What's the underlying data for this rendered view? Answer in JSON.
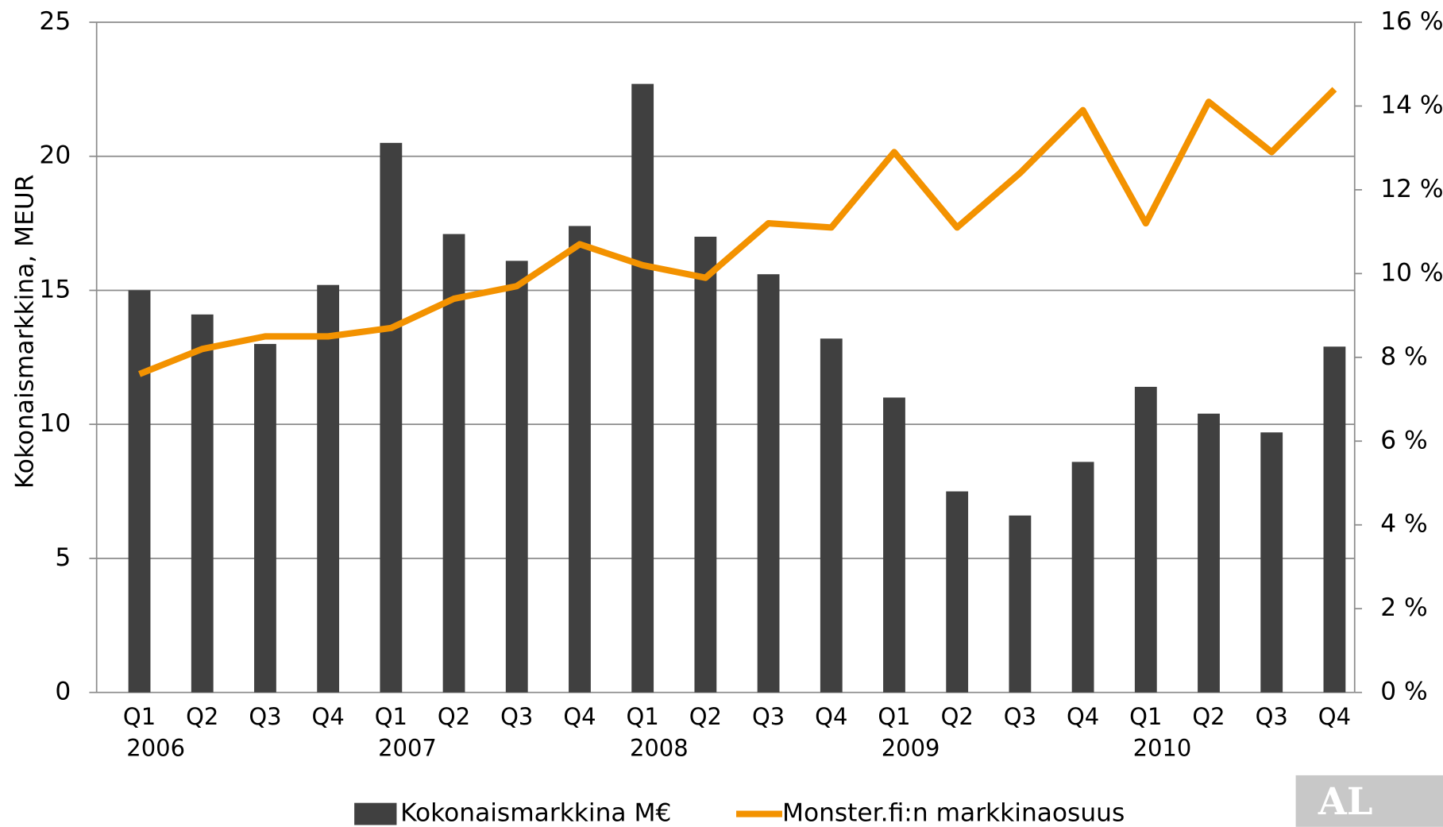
{
  "chart_data": {
    "type": "bar-line",
    "ylabel": "Kokonaismarkkina, MEUR",
    "categories": [
      "Q1",
      "Q2",
      "Q3",
      "Q4",
      "Q1",
      "Q2",
      "Q3",
      "Q4",
      "Q1",
      "Q2",
      "Q3",
      "Q4",
      "Q1",
      "Q2",
      "Q3",
      "Q4",
      "Q1",
      "Q2",
      "Q3",
      "Q4"
    ],
    "year_labels": [
      "2006",
      null,
      null,
      null,
      "2007",
      null,
      null,
      null,
      "2008",
      null,
      null,
      null,
      "2009",
      null,
      null,
      null,
      "2010",
      null,
      null,
      null
    ],
    "series": [
      {
        "name": "Kokonaismarkkina M€",
        "color": "#404040",
        "type": "bar",
        "values": [
          15,
          14.1,
          13,
          15.2,
          20.5,
          17.1,
          16.1,
          17.4,
          22.7,
          17,
          15.6,
          13.2,
          11,
          7.5,
          6.6,
          8.6,
          11.4,
          10.4,
          9.7,
          12.9
        ]
      },
      {
        "name": "Monster.fi:n markkinaosuus",
        "color": "#f39200",
        "type": "line",
        "axis": "y2",
        "values": [
          7.6,
          8.2,
          8.5,
          8.5,
          8.7,
          9.4,
          9.7,
          10.7,
          10.2,
          9.9,
          11.2,
          11.1,
          12.9,
          11.1,
          12.4,
          13.9,
          11.2,
          14.1,
          12.9,
          14.4
        ]
      }
    ],
    "ylim": [
      0,
      25
    ],
    "yticks": [
      0,
      5,
      10,
      15,
      20,
      25
    ],
    "y2lim": [
      0,
      16
    ],
    "y2ticks": [
      {
        "value": 0,
        "label": "0 %"
      },
      {
        "value": 2,
        "label": "2 %"
      },
      {
        "value": 4,
        "label": "4 %"
      },
      {
        "value": 6,
        "label": "6 %"
      },
      {
        "value": 8,
        "label": "8 %"
      },
      {
        "value": 10,
        "label": "10 %"
      },
      {
        "value": 12,
        "label": "12 %"
      },
      {
        "value": 14,
        "label": "14 %"
      },
      {
        "value": 16,
        "label": "16 %"
      }
    ],
    "grid": true,
    "legend": "bottom",
    "logo": "AL"
  }
}
